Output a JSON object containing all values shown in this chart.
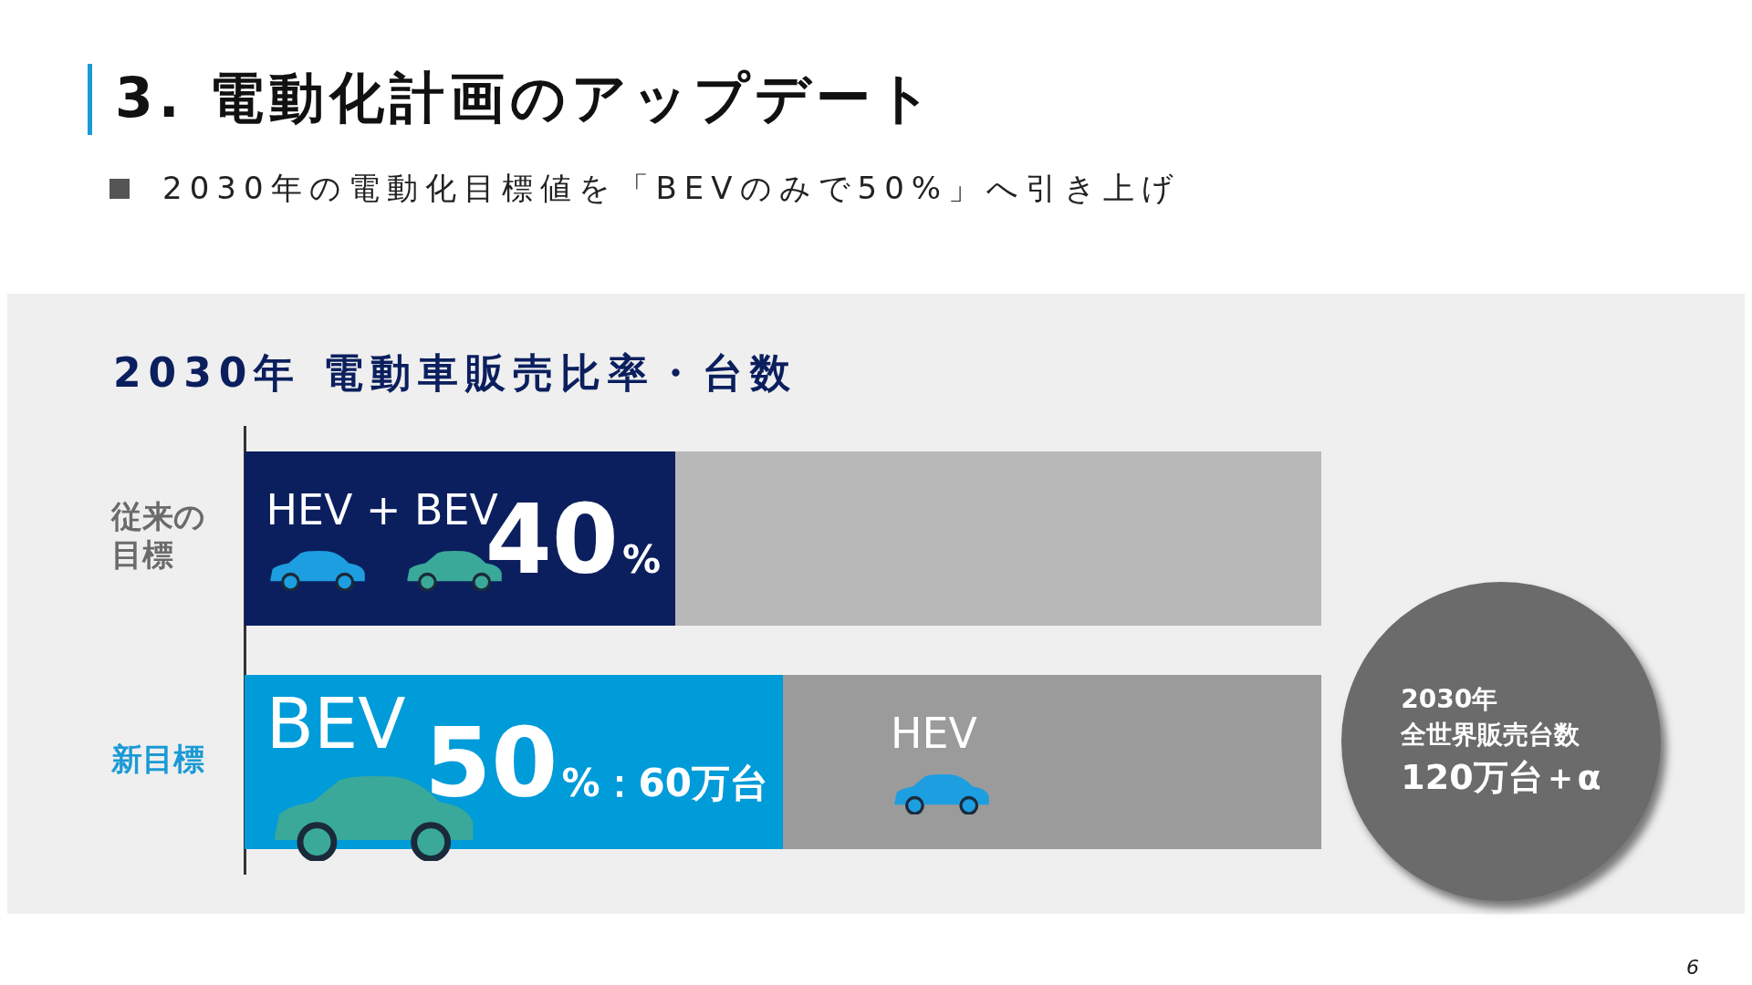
{
  "chart_data": {
    "type": "bar",
    "title": "2030年 電動車販売比率・台数",
    "subtitle": "2030年の電動化目標値を「BEVのみで50%」へ引き上げ",
    "orientation": "horizontal",
    "stacked": true,
    "categories": [
      "従来の目標",
      "新目標"
    ],
    "xlim": [
      0,
      100
    ],
    "tick_labels": "y",
    "grid": false,
    "legend": false,
    "series": [
      {
        "colors": [
          "#0b1f5e",
          "#009bd9"
        ],
        "values": [
          40,
          50
        ],
        "value_labels": [
          "40%",
          "50%：60万台"
        ]
      },
      {
        "colors": [
          "#b8b8b8",
          "#9b9b9b"
        ],
        "values": [
          60,
          50
        ]
      }
    ],
    "annotations": [
      "HEV + BEV",
      "BEV",
      "HEV",
      "3. 電動化計画のアップデート",
      "2030年",
      "全世界販売台数",
      "120万台＋α",
      "6"
    ]
  }
}
